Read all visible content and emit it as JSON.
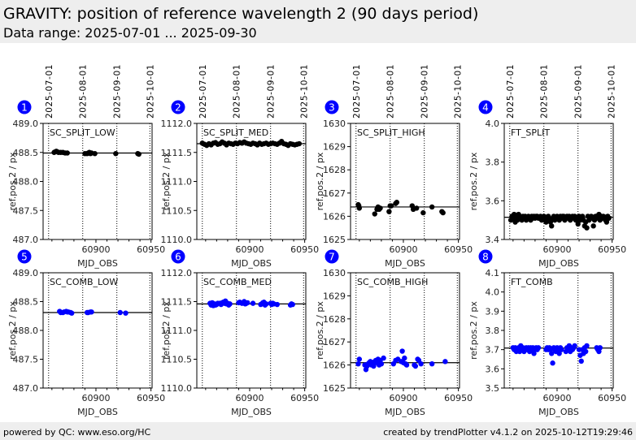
{
  "header": {
    "title": "GRAVITY: position of reference wavelength 2 (90 days period)",
    "subtitle": "Data range: 2025-07-01 ... 2025-09-30"
  },
  "footer": {
    "left": "powered by QC: www.eso.org/HC",
    "right": "created by trendPlotter v4.1.2 on 2025-10-12T19:29:46"
  },
  "colors": {
    "header_bg": "#eeeeee",
    "badge": "#0000ff",
    "split_points": "#000000",
    "comb_points": "#0000ff"
  },
  "chart_data": [
    {
      "type": "scatter",
      "id": 1,
      "label": "SC_SPLIT_LOW",
      "xlabel": "MJD_OBS",
      "ylabel": "ref.pos.2 / px",
      "xlim": [
        60852,
        60951
      ],
      "ylim": [
        487.0,
        489.0
      ],
      "yticks": [
        "487.0",
        "487.5",
        "488.0",
        "488.5",
        "489.0"
      ],
      "ytick_values": [
        487.0,
        487.5,
        488.0,
        488.5,
        489.0
      ],
      "xticks": [
        "60900",
        "60950"
      ],
      "xtick_values": [
        60900,
        60950
      ],
      "date_lines": [
        {
          "label": "2025-07-01",
          "mjd": 60857
        },
        {
          "label": "2025-08-01",
          "mjd": 60888
        },
        {
          "label": "2025-09-01",
          "mjd": 60919
        },
        {
          "label": "2025-10-01",
          "mjd": 60949
        }
      ],
      "reference": 488.49,
      "color": "#000000",
      "x": [
        60862,
        60863,
        60864,
        60865,
        60866,
        60868,
        60870,
        60872,
        60874,
        60890,
        60892,
        60893,
        60894,
        60895,
        60896,
        60899,
        60918,
        60938,
        60939
      ],
      "y": [
        488.5,
        488.51,
        488.52,
        488.51,
        488.5,
        488.5,
        488.5,
        488.49,
        488.49,
        488.48,
        488.48,
        488.49,
        488.5,
        488.48,
        488.49,
        488.48,
        488.48,
        488.48,
        488.47
      ]
    },
    {
      "type": "scatter",
      "id": 2,
      "label": "SC_SPLIT_MED",
      "xlabel": "MJD_OBS",
      "ylabel": "ref.pos.2 / px",
      "xlim": [
        60852,
        60951
      ],
      "ylim": [
        1110.0,
        1112.0
      ],
      "yticks": [
        "1110.0",
        "1110.5",
        "1111.0",
        "1111.5",
        "1112.0"
      ],
      "ytick_values": [
        1110.0,
        1110.5,
        1111.0,
        1111.5,
        1112.0
      ],
      "xticks": [
        "60900",
        "60950"
      ],
      "xtick_values": [
        60900,
        60950
      ],
      "date_lines": [
        {
          "label": "2025-07-01",
          "mjd": 60857
        },
        {
          "label": "2025-08-01",
          "mjd": 60888
        },
        {
          "label": "2025-09-01",
          "mjd": 60919
        },
        {
          "label": "2025-10-01",
          "mjd": 60949
        }
      ],
      "reference": 1111.65,
      "color": "#000000",
      "x": [
        60857,
        60859,
        60861,
        60863,
        60865,
        60867,
        60869,
        60871,
        60873,
        60875,
        60877,
        60879,
        60881,
        60883,
        60885,
        60887,
        60889,
        60891,
        60893,
        60895,
        60897,
        60899,
        60901,
        60903,
        60905,
        60907,
        60909,
        60911,
        60913,
        60915,
        60917,
        60919,
        60921,
        60923,
        60925,
        60927,
        60929,
        60931,
        60933,
        60935,
        60937,
        60939,
        60941,
        60943,
        60945
      ],
      "y": [
        1111.66,
        1111.64,
        1111.62,
        1111.65,
        1111.63,
        1111.66,
        1111.67,
        1111.64,
        1111.65,
        1111.68,
        1111.66,
        1111.63,
        1111.66,
        1111.65,
        1111.64,
        1111.66,
        1111.65,
        1111.67,
        1111.66,
        1111.68,
        1111.66,
        1111.65,
        1111.64,
        1111.66,
        1111.65,
        1111.63,
        1111.66,
        1111.64,
        1111.65,
        1111.66,
        1111.64,
        1111.65,
        1111.66,
        1111.65,
        1111.64,
        1111.66,
        1111.69,
        1111.65,
        1111.64,
        1111.62,
        1111.65,
        1111.64,
        1111.63,
        1111.64,
        1111.65
      ]
    },
    {
      "type": "scatter",
      "id": 3,
      "label": "SC_SPLIT_HIGH",
      "xlabel": "MJD_OBS",
      "ylabel": "ref.pos.2 / px",
      "xlim": [
        60852,
        60951
      ],
      "ylim": [
        1625,
        1630
      ],
      "yticks": [
        "1625",
        "1626",
        "1627",
        "1628",
        "1629",
        "1630"
      ],
      "ytick_values": [
        1625,
        1626,
        1627,
        1628,
        1629,
        1630
      ],
      "xticks": [
        "60900",
        "60950"
      ],
      "xtick_values": [
        60900,
        60950
      ],
      "date_lines": [
        {
          "label": "2025-07-01",
          "mjd": 60857
        },
        {
          "label": "2025-08-01",
          "mjd": 60888
        },
        {
          "label": "2025-09-01",
          "mjd": 60919
        },
        {
          "label": "2025-10-01",
          "mjd": 60949
        }
      ],
      "reference": 1626.4,
      "color": "#000000",
      "x": [
        60859,
        60859.5,
        60860,
        60874,
        60876,
        60877,
        60878,
        60879,
        60887,
        60888,
        60889,
        60893,
        60894,
        60908,
        60909,
        60912,
        60918,
        60926,
        60935,
        60936
      ],
      "y": [
        1626.5,
        1626.45,
        1626.35,
        1626.1,
        1626.3,
        1626.4,
        1626.3,
        1626.35,
        1626.2,
        1626.45,
        1626.45,
        1626.55,
        1626.6,
        1626.45,
        1626.3,
        1626.35,
        1626.15,
        1626.4,
        1626.2,
        1626.15
      ]
    },
    {
      "type": "scatter",
      "id": 4,
      "label": "FT_SPLIT",
      "xlabel": "MJD_OBS",
      "ylabel": "ref.pos.2 / px",
      "xlim": [
        60852,
        60951
      ],
      "ylim": [
        3.4,
        4.0
      ],
      "yticks": [
        "3.4",
        "3.6",
        "3.8",
        "4.0"
      ],
      "ytick_values": [
        3.4,
        3.6,
        3.8,
        4.0
      ],
      "xticks": [
        "60900",
        "60950"
      ],
      "xtick_values": [
        60900,
        60950
      ],
      "date_lines": [
        {
          "label": "2025-07-01",
          "mjd": 60857
        },
        {
          "label": "2025-08-01",
          "mjd": 60888
        },
        {
          "label": "2025-09-01",
          "mjd": 60919
        },
        {
          "label": "2025-10-01",
          "mjd": 60949
        }
      ],
      "reference": 3.515,
      "color": "#000000",
      "x": [
        60858,
        60859,
        60860,
        60861,
        60862,
        60863,
        60864,
        60865,
        60866,
        60867,
        60868,
        60869,
        60870,
        60871,
        60872,
        60873,
        60874,
        60875,
        60876,
        60877,
        60878,
        60879,
        60880,
        60881,
        60882,
        60883,
        60884,
        60885,
        60886,
        60887,
        60888,
        60889,
        60890,
        60891,
        60892,
        60893,
        60894,
        60895,
        60896,
        60897,
        60898,
        60899,
        60900,
        60901,
        60902,
        60903,
        60904,
        60905,
        60906,
        60907,
        60908,
        60909,
        60910,
        60911,
        60912,
        60913,
        60914,
        60915,
        60916,
        60917,
        60918,
        60919,
        60920,
        60921,
        60922,
        60923,
        60924,
        60925,
        60926,
        60927,
        60928,
        60929,
        60930,
        60931,
        60932,
        60933,
        60934,
        60935,
        60936,
        60937,
        60938,
        60939,
        60940,
        60941,
        60942,
        60943,
        60944,
        60945,
        60946,
        60947
      ],
      "y": [
        3.5,
        3.52,
        3.51,
        3.53,
        3.49,
        3.52,
        3.5,
        3.53,
        3.52,
        3.51,
        3.5,
        3.52,
        3.51,
        3.52,
        3.5,
        3.51,
        3.52,
        3.51,
        3.5,
        3.52,
        3.51,
        3.52,
        3.51,
        3.52,
        3.52,
        3.51,
        3.51,
        3.52,
        3.5,
        3.51,
        3.52,
        3.5,
        3.49,
        3.51,
        3.52,
        3.5,
        3.49,
        3.47,
        3.51,
        3.52,
        3.5,
        3.51,
        3.52,
        3.51,
        3.5,
        3.52,
        3.51,
        3.52,
        3.52,
        3.5,
        3.51,
        3.52,
        3.51,
        3.52,
        3.5,
        3.51,
        3.52,
        3.51,
        3.52,
        3.5,
        3.51,
        3.48,
        3.52,
        3.5,
        3.51,
        3.52,
        3.5,
        3.47,
        3.49,
        3.46,
        3.52,
        3.5,
        3.51,
        3.52,
        3.51,
        3.47,
        3.5,
        3.52,
        3.51,
        3.52,
        3.53,
        3.5,
        3.52,
        3.51,
        3.52,
        3.51,
        3.5,
        3.49,
        3.52,
        3.51
      ]
    },
    {
      "type": "scatter",
      "id": 5,
      "label": "SC_COMB_LOW",
      "xlabel": "MJD_OBS",
      "ylabel": "ref.pos.2 / px",
      "xlim": [
        60852,
        60951
      ],
      "ylim": [
        487.0,
        489.0
      ],
      "yticks": [
        "487.0",
        "487.5",
        "488.0",
        "488.5",
        "489.0"
      ],
      "ytick_values": [
        487.0,
        487.5,
        488.0,
        488.5,
        489.0
      ],
      "xticks": [
        "60900",
        "60950"
      ],
      "xtick_values": [
        60900,
        60950
      ],
      "date_lines": [
        {
          "label": "2025-07-01",
          "mjd": 60857
        },
        {
          "label": "2025-08-01",
          "mjd": 60888
        },
        {
          "label": "2025-09-01",
          "mjd": 60919
        },
        {
          "label": "2025-10-01",
          "mjd": 60949
        }
      ],
      "reference": 488.31,
      "color": "#0000ff",
      "x": [
        60867,
        60868,
        60870,
        60871,
        60873,
        60874,
        60875,
        60877,
        60878,
        60892,
        60893,
        60895,
        60896,
        60922,
        60927
      ],
      "y": [
        488.33,
        488.31,
        488.31,
        488.32,
        488.33,
        488.32,
        488.32,
        488.31,
        488.3,
        488.31,
        488.31,
        488.32,
        488.32,
        488.31,
        488.3
      ]
    },
    {
      "type": "scatter",
      "id": 6,
      "label": "SC_COMB_MED",
      "xlabel": "MJD_OBS",
      "ylabel": "ref.pos.2 / px",
      "xlim": [
        60852,
        60951
      ],
      "ylim": [
        1110.0,
        1112.0
      ],
      "yticks": [
        "1110.0",
        "1110.5",
        "1111.0",
        "1111.5",
        "1112.0"
      ],
      "ytick_values": [
        1110.0,
        1110.5,
        1111.0,
        1111.5,
        1112.0
      ],
      "xticks": [
        "60900",
        "60950"
      ],
      "xtick_values": [
        60900,
        60950
      ],
      "date_lines": [
        {
          "label": "2025-07-01",
          "mjd": 60857
        },
        {
          "label": "2025-08-01",
          "mjd": 60888
        },
        {
          "label": "2025-09-01",
          "mjd": 60919
        },
        {
          "label": "2025-10-01",
          "mjd": 60949
        }
      ],
      "reference": 1111.46,
      "color": "#0000ff",
      "x": [
        60864,
        60865,
        60866,
        60867,
        60868,
        60869,
        60870,
        60871,
        60873,
        60874,
        60875,
        60876,
        60877,
        60878,
        60879,
        60880,
        60881,
        60882,
        60890,
        60891,
        60893,
        60894,
        60895,
        60896,
        60897,
        60898,
        60903,
        60910,
        60911,
        60912,
        60913,
        60914,
        60915,
        60919,
        60920,
        60921,
        60922,
        60925,
        60937,
        60938,
        60939
      ],
      "y": [
        1111.47,
        1111.44,
        1111.48,
        1111.43,
        1111.46,
        1111.44,
        1111.45,
        1111.47,
        1111.47,
        1111.45,
        1111.48,
        1111.49,
        1111.47,
        1111.51,
        1111.46,
        1111.47,
        1111.44,
        1111.46,
        1111.48,
        1111.49,
        1111.47,
        1111.48,
        1111.5,
        1111.46,
        1111.47,
        1111.48,
        1111.47,
        1111.45,
        1111.46,
        1111.48,
        1111.49,
        1111.44,
        1111.46,
        1111.47,
        1111.45,
        1111.47,
        1111.46,
        1111.45,
        1111.44,
        1111.46,
        1111.45
      ]
    },
    {
      "type": "scatter",
      "id": 7,
      "label": "SC_COMB_HIGH",
      "xlabel": "MJD_OBS",
      "ylabel": "ref.pos.2 / px",
      "xlim": [
        60852,
        60951
      ],
      "ylim": [
        1625,
        1630
      ],
      "yticks": [
        "1625",
        "1626",
        "1627",
        "1628",
        "1629",
        "1630"
      ],
      "ytick_values": [
        1625,
        1626,
        1627,
        1628,
        1629,
        1630
      ],
      "xticks": [
        "60900",
        "60950"
      ],
      "xtick_values": [
        60900,
        60950
      ],
      "date_lines": [
        {
          "label": "2025-07-01",
          "mjd": 60857
        },
        {
          "label": "2025-08-01",
          "mjd": 60888
        },
        {
          "label": "2025-09-01",
          "mjd": 60919
        },
        {
          "label": "2025-10-01",
          "mjd": 60949
        }
      ],
      "reference": 1626.1,
      "color": "#0000ff",
      "x": [
        60859,
        60860,
        60865,
        60866,
        60867,
        60868,
        60869,
        60870,
        60871,
        60872,
        60873,
        60874,
        60875,
        60876,
        60877,
        60878,
        60879,
        60880,
        60882,
        60891,
        60893,
        60895,
        60898,
        60899,
        60900,
        60901,
        60902,
        60903,
        60910,
        60911,
        60913,
        60914,
        60916,
        60926,
        60938
      ],
      "y": [
        1626.05,
        1626.25,
        1626.0,
        1625.8,
        1625.95,
        1626.05,
        1626.1,
        1626.15,
        1626.0,
        1626.1,
        1625.95,
        1626.15,
        1626.2,
        1626.1,
        1626.25,
        1626.0,
        1626.2,
        1626.05,
        1626.3,
        1626.05,
        1626.2,
        1626.25,
        1626.15,
        1626.6,
        1626.1,
        1626.3,
        1626.05,
        1626.0,
        1626.0,
        1625.95,
        1626.25,
        1626.2,
        1626.05,
        1626.05,
        1626.15
      ]
    },
    {
      "type": "scatter",
      "id": 8,
      "label": "FT_COMB",
      "xlabel": "MJD_OBS",
      "ylabel": "ref.pos.2 / px",
      "xlim": [
        60852,
        60951
      ],
      "ylim": [
        3.5,
        4.1
      ],
      "yticks": [
        "3.5",
        "3.6",
        "3.7",
        "3.8",
        "3.9",
        "4.0",
        "4.1"
      ],
      "ytick_values": [
        3.5,
        3.6,
        3.7,
        3.8,
        3.9,
        4.0,
        4.1
      ],
      "xticks": [
        "60900",
        "60950"
      ],
      "xtick_values": [
        60900,
        60950
      ],
      "date_lines": [
        {
          "label": "2025-07-01",
          "mjd": 60857
        },
        {
          "label": "2025-08-01",
          "mjd": 60888
        },
        {
          "label": "2025-09-01",
          "mjd": 60919
        },
        {
          "label": "2025-10-01",
          "mjd": 60949
        }
      ],
      "reference": 3.708,
      "color": "#0000ff",
      "x": [
        60860,
        60861,
        60862,
        60863,
        60864,
        60865,
        60866,
        60867,
        60868,
        60869,
        60870,
        60871,
        60872,
        60873,
        60874,
        60875,
        60876,
        60877,
        60878,
        60879,
        60880,
        60881,
        60882,
        60883,
        60890,
        60891,
        60892,
        60893,
        60894,
        60895,
        60896,
        60897,
        60898,
        60899,
        60900,
        60901,
        60902,
        60903,
        60904,
        60908,
        60909,
        60910,
        60911,
        60912,
        60913,
        60914,
        60915,
        60916,
        60920,
        60921,
        60922,
        60923,
        60924,
        60925,
        60926,
        60927,
        60936,
        60937,
        60938,
        60939
      ],
      "y": [
        3.71,
        3.7,
        3.71,
        3.69,
        3.7,
        3.71,
        3.69,
        3.72,
        3.7,
        3.71,
        3.69,
        3.7,
        3.71,
        3.7,
        3.71,
        3.69,
        3.71,
        3.7,
        3.71,
        3.68,
        3.7,
        3.71,
        3.7,
        3.71,
        3.7,
        3.71,
        3.7,
        3.71,
        3.7,
        3.68,
        3.63,
        3.71,
        3.7,
        3.69,
        3.71,
        3.7,
        3.68,
        3.71,
        3.7,
        3.69,
        3.71,
        3.7,
        3.72,
        3.69,
        3.71,
        3.7,
        3.71,
        3.72,
        3.7,
        3.67,
        3.64,
        3.7,
        3.68,
        3.71,
        3.69,
        3.72,
        3.71,
        3.7,
        3.69,
        3.71
      ]
    }
  ]
}
